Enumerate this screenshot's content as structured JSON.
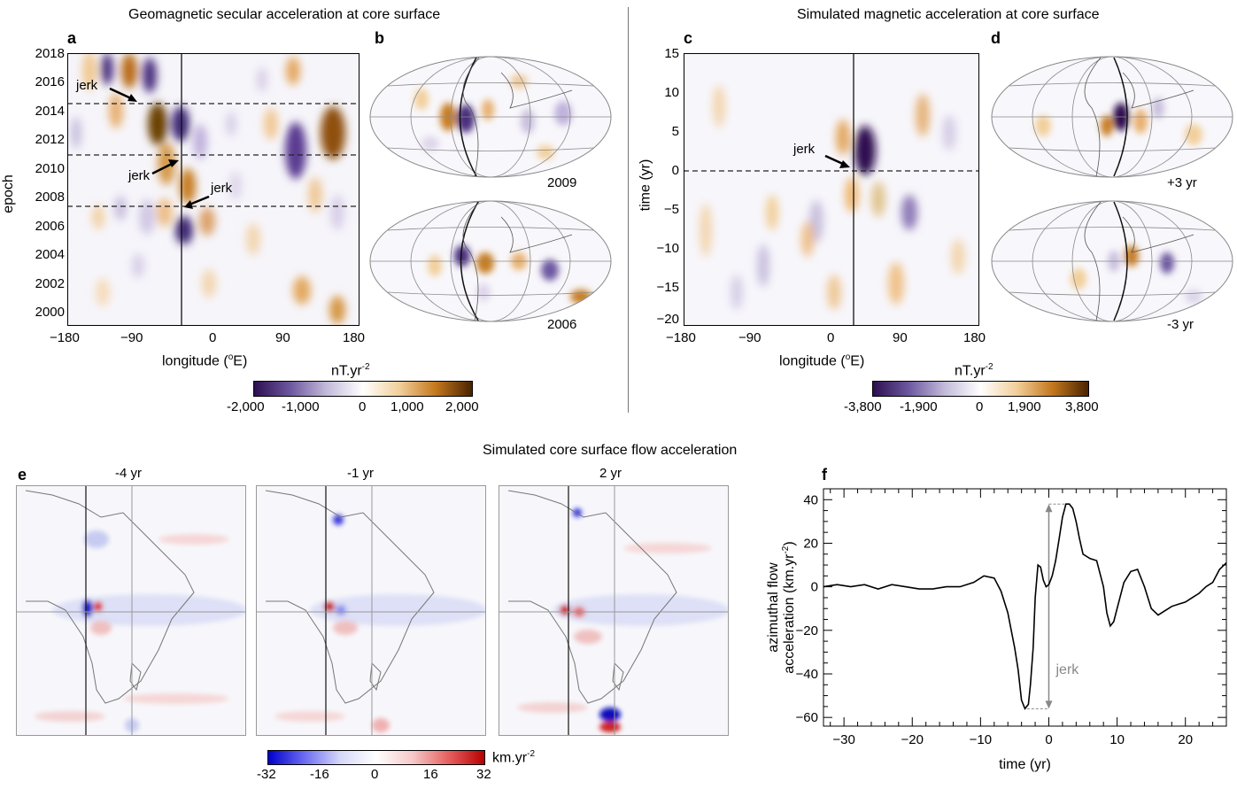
{
  "titles": {
    "left": "Geomagnetic secular acceleration at core surface",
    "right": "Simulated magnetic acceleration at core surface",
    "bottom": "Simulated core surface flow acceleration"
  },
  "panel_labels": {
    "a": "a",
    "b": "b",
    "c": "c",
    "d": "d",
    "e": "e",
    "f": "f"
  },
  "panel_a": {
    "ylabel": "epoch",
    "xlabel_main": "longitude (",
    "xlabel_sup": "o",
    "xlabel_end": "E)",
    "yticks": [
      "2018",
      "2016",
      "2014",
      "2012",
      "2010",
      "2008",
      "2006",
      "2004",
      "2002",
      "2000"
    ],
    "xticks": [
      "−180",
      "−90",
      "0",
      "90",
      "180"
    ],
    "annotations": [
      "jerk",
      "jerk",
      "jerk"
    ]
  },
  "panel_b": {
    "maps": [
      "2009",
      "2006"
    ]
  },
  "panel_c": {
    "ylabel": "time (yr)",
    "xlabel_main": "longitude (",
    "xlabel_sup": "o",
    "xlabel_end": "E)",
    "yticks": [
      "15",
      "10",
      "5",
      "0",
      "−5",
      "−10",
      "−15",
      "−20"
    ],
    "xticks": [
      "−180",
      "−90",
      "0",
      "90",
      "180"
    ],
    "annotation": "jerk"
  },
  "panel_d": {
    "maps": [
      "+3 yr",
      "-3 yr"
    ]
  },
  "colorbar_a": {
    "unit_main": "nT.yr",
    "unit_sup": "-2",
    "ticks": [
      "-2,000",
      "-1,000",
      "0",
      "1,000",
      "2,000"
    ]
  },
  "colorbar_c": {
    "unit_main": "nT.yr",
    "unit_sup": "-2",
    "ticks": [
      "-3,800",
      "-1,900",
      "0",
      "1,900",
      "3,800"
    ]
  },
  "panel_e": {
    "maps": [
      "-4 yr",
      "-1 yr",
      "2 yr"
    ],
    "colorbar": {
      "unit_main": "km.yr",
      "unit_sup": "-2",
      "ticks": [
        "-32",
        "-16",
        "0",
        "16",
        "32"
      ]
    }
  },
  "chart_data": {
    "type": "line",
    "title": "",
    "xlabel": "time (yr)",
    "ylabel_line1": "azimuthal flow",
    "ylabel_line2_main": "acceleration (km.yr",
    "ylabel_line2_sup": "-2",
    "ylabel_line2_end": ")",
    "xlim": [
      -33,
      26
    ],
    "ylim": [
      -64,
      45
    ],
    "xticks": [
      -30,
      -20,
      -10,
      0,
      10,
      20
    ],
    "xtick_labels": [
      "−30",
      "−20",
      "−10",
      "0",
      "10",
      "20"
    ],
    "yticks": [
      40,
      20,
      0,
      -20,
      -40,
      -60
    ],
    "ytick_labels": [
      "40",
      "20",
      "0",
      "−20",
      "−40",
      "−60"
    ],
    "annotation": "jerk",
    "annotation_range": [
      -56,
      38
    ],
    "grid": false,
    "series": [
      {
        "x": [
          -33,
          -31,
          -29,
          -27,
          -25,
          -23,
          -21,
          -19,
          -17,
          -15,
          -13,
          -11,
          -9.5,
          -8,
          -7,
          -6,
          -5,
          -4.5,
          -4,
          -3.5,
          -3,
          -2.7,
          -2.3,
          -2,
          -1.6,
          -1.2,
          -0.8,
          -0.4,
          0,
          0.5,
          1,
          1.5,
          2,
          2.5,
          3,
          3.5,
          4,
          4.5,
          5,
          6,
          7,
          8,
          8.5,
          9,
          9.5,
          10,
          11,
          12,
          13,
          14,
          15,
          16,
          17,
          18,
          19,
          20,
          21,
          22,
          23,
          24,
          25,
          26
        ],
        "y": [
          0,
          1,
          0,
          1,
          -1,
          1,
          0,
          -1,
          -1,
          0,
          0,
          2,
          5,
          4,
          -2,
          -12,
          -28,
          -38,
          -52,
          -56,
          -54,
          -45,
          -28,
          -5,
          10,
          9,
          3,
          0,
          1,
          5,
          12,
          22,
          32,
          38,
          38,
          36,
          30,
          22,
          15,
          13,
          12,
          0,
          -12,
          -18,
          -16,
          -10,
          2,
          7,
          8,
          0,
          -10,
          -13,
          -11,
          -9,
          -8,
          -7,
          -5,
          -3,
          0,
          2,
          8,
          11
        ]
      }
    ]
  }
}
